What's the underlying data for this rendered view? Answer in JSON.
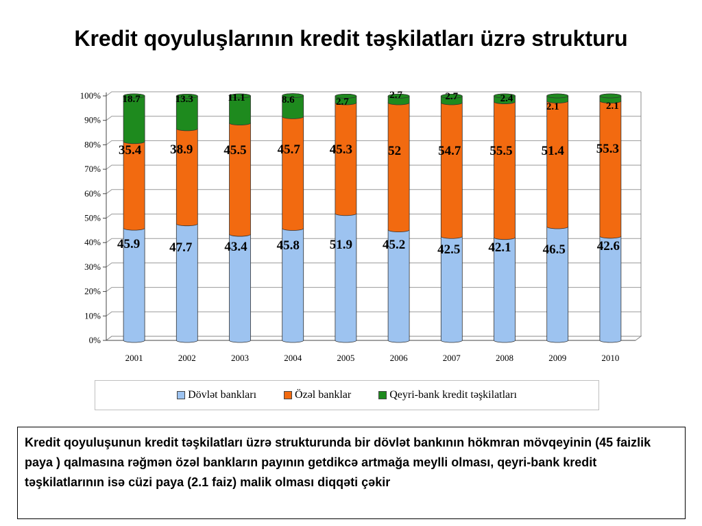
{
  "title": "Kredit qoyuluşlarının kredit təşkilatları üzrə strukturu",
  "note": "Kredit qoyuluşunun kredit təşkilatları üzrə strukturunda bir dövlət bankının hökmran mövqeyinin (45 faizlik paya ) qalmasına rəğmən özəl bankların payının getdikcə artmağa meylli olması, qeyri-bank kredit təşkilatlarının isə cüzi paya (2.1 faiz) malik olması diqqəti çəkir",
  "colors": {
    "state": "#9dc3f0",
    "private": "#f26a10",
    "nonbank": "#1e8a1e"
  },
  "chart_data": {
    "type": "bar",
    "stacked": true,
    "percent_stacked": true,
    "categories": [
      "2001",
      "2002",
      "2003",
      "2004",
      "2005",
      "2006",
      "2007",
      "2008",
      "2009",
      "2010"
    ],
    "yticks": [
      "0%",
      "10%",
      "20%",
      "30%",
      "40%",
      "50%",
      "60%",
      "70%",
      "80%",
      "90%",
      "100%"
    ],
    "ylim": [
      0,
      100
    ],
    "legend_position": "bottom",
    "series": [
      {
        "name": "Dövlət bankları",
        "values": [
          45.9,
          47.7,
          43.4,
          45.8,
          51.9,
          45.2,
          42.5,
          42.1,
          46.5,
          42.6
        ],
        "labels": [
          "45.9",
          "47.7",
          "43.4",
          "45.8",
          "51.9",
          "45.2",
          "42.5",
          "42.1",
          "46.5",
          "42.6"
        ]
      },
      {
        "name": "Özəl banklar",
        "values": [
          35.4,
          38.9,
          45.5,
          45.7,
          45.3,
          52,
          54.7,
          55.5,
          51.4,
          55.3
        ],
        "labels": [
          "35.4",
          "38.9",
          "45.5",
          "45.7",
          "45.3",
          "52",
          "54.7",
          "55.5",
          "51.4",
          "55.3"
        ]
      },
      {
        "name": "Qeyri-bank kredit təşkilatları",
        "values": [
          18.7,
          13.3,
          11.1,
          8.6,
          2.7,
          2.7,
          2.7,
          2.4,
          2.1,
          2.1
        ],
        "labels": [
          "18.7",
          "13.3",
          "11.1",
          "8.6",
          "2.7",
          "2.7",
          "2.7",
          "2.4",
          "2.1",
          "2.1"
        ]
      }
    ]
  }
}
